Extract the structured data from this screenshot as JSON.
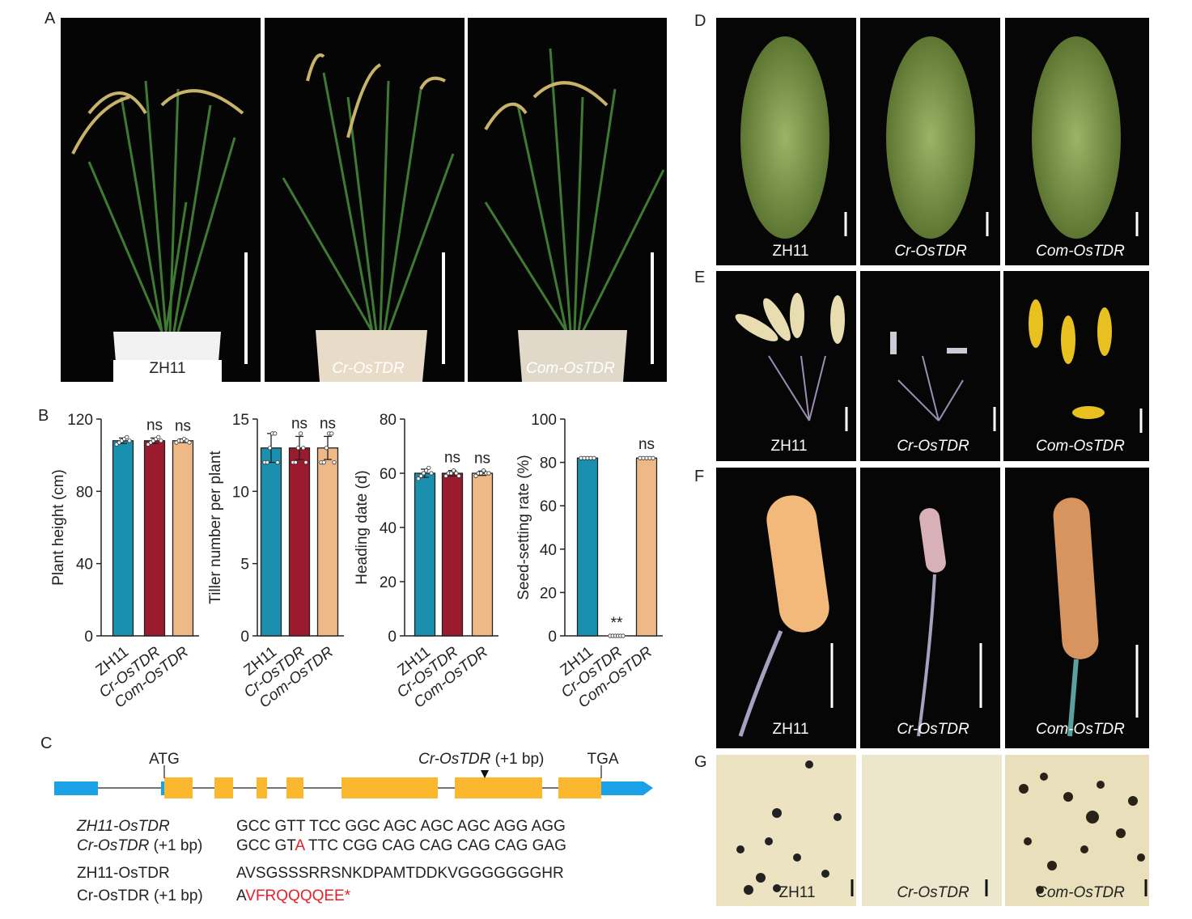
{
  "panels": {
    "a": "A",
    "b": "B",
    "c": "C",
    "d": "D",
    "e": "E",
    "f": "F",
    "g": "G"
  },
  "photos": {
    "a": [
      "ZH11",
      "Cr-OsTDR",
      "Com-OsTDR"
    ],
    "d": [
      "ZH11",
      "Cr-OsTDR",
      "Com-OsTDR"
    ],
    "e": [
      "ZH11",
      "Cr-OsTDR",
      "Com-OsTDR"
    ],
    "f": [
      "ZH11",
      "Cr-OsTDR",
      "Com-OsTDR"
    ],
    "g": [
      "ZH11",
      "Cr-OsTDR",
      "Com-OsTDR"
    ]
  },
  "chart_data": [
    {
      "type": "bar",
      "y_label": "Plant height (cm)",
      "categories": [
        "ZH11",
        "Cr-OsTDR",
        "Com-OsTDR"
      ],
      "category_italic": [
        false,
        true,
        true
      ],
      "colors": [
        "#1b8fae",
        "#9a1a2e",
        "#efb887"
      ],
      "values": [
        108,
        108,
        108
      ],
      "errors": [
        1.5,
        1.5,
        1
      ],
      "points": [
        [
          106,
          107,
          108,
          109,
          110,
          108
        ],
        [
          106,
          107,
          108,
          109,
          110,
          108
        ],
        [
          107,
          108,
          108,
          109,
          108,
          107
        ]
      ],
      "annotations": [
        null,
        "ns",
        "ns"
      ],
      "ylim": [
        0,
        120
      ],
      "yticks": [
        0,
        40,
        80,
        120
      ]
    },
    {
      "type": "bar",
      "y_label": "Tiller number per plant",
      "categories": [
        "ZH11",
        "Cr-OsTDR",
        "Com-OsTDR"
      ],
      "category_italic": [
        false,
        true,
        true
      ],
      "colors": [
        "#1b8fae",
        "#9a1a2e",
        "#efb887"
      ],
      "values": [
        13,
        13,
        13
      ],
      "errors": [
        1,
        0.8,
        0.8
      ],
      "points": [
        [
          12,
          12,
          13,
          14,
          14,
          12
        ],
        [
          12,
          12,
          13,
          14,
          13,
          12
        ],
        [
          12,
          12,
          13,
          14,
          14,
          12
        ]
      ],
      "annotations": [
        null,
        "ns",
        "ns"
      ],
      "ylim": [
        0,
        15
      ],
      "yticks": [
        0,
        5,
        10,
        15
      ]
    },
    {
      "type": "bar",
      "y_label": "Heading date (d)",
      "categories": [
        "ZH11",
        "Cr-OsTDR",
        "Com-OsTDR"
      ],
      "category_italic": [
        false,
        true,
        true
      ],
      "colors": [
        "#1b8fae",
        "#9a1a2e",
        "#efb887"
      ],
      "values": [
        60,
        60,
        60
      ],
      "errors": [
        1.5,
        1,
        0.8
      ],
      "points": [
        [
          58,
          59,
          60,
          61,
          62,
          60
        ],
        [
          59,
          60,
          60,
          61,
          60,
          59
        ],
        [
          59,
          60,
          60,
          61,
          60,
          60
        ]
      ],
      "annotations": [
        null,
        "ns",
        "ns"
      ],
      "ylim": [
        0,
        80
      ],
      "yticks": [
        0,
        20,
        40,
        60,
        80
      ]
    },
    {
      "type": "bar",
      "y_label": "Seed-setting rate (%)",
      "categories": [
        "ZH11",
        "Cr-OsTDR",
        "Com-OsTDR"
      ],
      "category_italic": [
        false,
        true,
        true
      ],
      "colors": [
        "#1b8fae",
        "#9a1a2e",
        "#efb887"
      ],
      "values": [
        82,
        0,
        82
      ],
      "errors": [
        0.5,
        0,
        0.4
      ],
      "points": [
        [
          82,
          82,
          82,
          82,
          82
        ],
        [
          0,
          0,
          0,
          0,
          0,
          0
        ],
        [
          82,
          82,
          82,
          82,
          82
        ]
      ],
      "annotations": [
        null,
        "**",
        "ns"
      ],
      "ylim": [
        0,
        100
      ],
      "yticks": [
        0,
        20,
        40,
        60,
        80,
        100
      ]
    }
  ],
  "gene": {
    "atg": "ATG",
    "tga": "TGA",
    "mutation_label": "Cr-OsTDR",
    "mutation_suffix": " (+1 bp)"
  },
  "alignment": [
    {
      "label": "ZH11-OsTDR",
      "label_italic": true,
      "seq": [
        "GCC GTT TCC GGC AGC AGC AGC AGG AGG"
      ]
    },
    {
      "label": "Cr-OsTDR",
      "label_suffix": " (+1 bp)",
      "label_italic": true,
      "seq": [
        "GCC GT",
        "A",
        " TTC CGG CAG CAG CAG CAG GAG"
      ]
    },
    {
      "label": "ZH11-OsTDR",
      "label_italic": false,
      "seq": [
        "AVSGSSSRRSNKDPAMTDDKVGGGGGGGHR"
      ]
    },
    {
      "label": "Cr-OsTDR",
      "label_suffix": " (+1 bp)",
      "label_italic": false,
      "seq": [
        "A",
        "VFRQQQQEE*"
      ]
    }
  ],
  "highlight_color": "#e8202a"
}
